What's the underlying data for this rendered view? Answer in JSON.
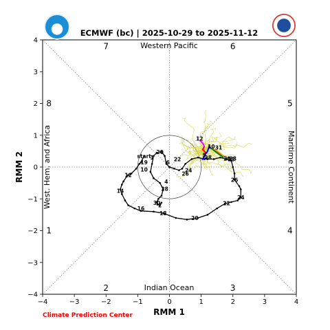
{
  "header": {
    "title": "ECMWF (bc) | 2025-10-29 to 2025-11-12"
  },
  "footer": {
    "credit": "Climate Prediction Center",
    "credit_color": "#ff0000"
  },
  "logos": {
    "left": {
      "icon": "noaa-logo-icon",
      "color": "#1a8fd8"
    },
    "right": {
      "icon": "nws-logo-icon",
      "color": "#1f4e9e"
    }
  },
  "chart_data": {
    "type": "line",
    "title": "ECMWF (bc) | 2025-10-29 to 2025-11-12",
    "xlabel": "RMM 1",
    "ylabel": "RMM 2",
    "xlim": [
      -4,
      4
    ],
    "ylim": [
      -4,
      4
    ],
    "xticks": [
      "−4",
      "−3",
      "−2",
      "−1",
      "0",
      "1",
      "2",
      "3",
      "4"
    ],
    "yticks": [
      "−4",
      "−3",
      "−2",
      "−1",
      "0",
      "1",
      "2",
      "3",
      "4"
    ],
    "phase_numbers": [
      {
        "label": "1",
        "x": -3.8,
        "y": -2.0
      },
      {
        "label": "2",
        "x": -2.0,
        "y": -3.8
      },
      {
        "label": "3",
        "x": 2.0,
        "y": -3.8
      },
      {
        "label": "4",
        "x": 3.8,
        "y": -2.0
      },
      {
        "label": "5",
        "x": 3.8,
        "y": 2.0
      },
      {
        "label": "6",
        "x": 2.0,
        "y": 3.8
      },
      {
        "label": "7",
        "x": -2.0,
        "y": 3.8
      },
      {
        "label": "8",
        "x": -3.8,
        "y": 2.0
      }
    ],
    "region_labels": {
      "top": "Western Pacific",
      "bottom": "Indian Ocean",
      "left": "West. Hem. and Africa",
      "right": "Maritime Continent"
    },
    "unit_circle_radius": 1,
    "observed": {
      "color": "#000000",
      "points": [
        [
          -0.8,
          0.35
        ],
        [
          -0.9,
          0.15
        ],
        [
          -0.95,
          0.1
        ],
        [
          -1.05,
          -0.05
        ],
        [
          -1.2,
          -0.2
        ],
        [
          -1.3,
          -0.25
        ],
        [
          -1.35,
          -0.3
        ],
        [
          -1.45,
          -0.45
        ],
        [
          -1.5,
          -0.55
        ],
        [
          -1.55,
          -0.7
        ],
        [
          -1.5,
          -0.85
        ],
        [
          -1.4,
          -1.05
        ],
        [
          -1.3,
          -1.2
        ],
        [
          -1.1,
          -1.3
        ],
        [
          -0.9,
          -1.38
        ],
        [
          -0.5,
          -1.4
        ],
        [
          -0.2,
          -1.45
        ],
        [
          0.2,
          -1.6
        ],
        [
          0.55,
          -1.65
        ],
        [
          0.9,
          -1.6
        ],
        [
          1.2,
          -1.5
        ],
        [
          1.5,
          -1.3
        ],
        [
          1.75,
          -1.15
        ],
        [
          1.95,
          -1.1
        ],
        [
          2.15,
          -1.05
        ],
        [
          2.25,
          -0.95
        ],
        [
          2.25,
          -0.7
        ],
        [
          2.2,
          -0.6
        ],
        [
          2.05,
          -0.4
        ],
        [
          2.05,
          -0.2
        ],
        [
          2.0,
          0.0
        ],
        [
          1.95,
          0.2
        ],
        [
          1.8,
          0.25
        ],
        [
          1.6,
          0.3
        ],
        [
          1.4,
          0.25
        ],
        [
          1.2,
          0.25
        ],
        [
          1.1,
          0.25
        ],
        [
          0.9,
          0.3
        ],
        [
          0.7,
          0.25
        ],
        [
          0.5,
          0.1
        ],
        [
          0.4,
          -0.05
        ],
        [
          0.3,
          -0.1
        ],
        [
          0.15,
          -0.05
        ],
        [
          0.0,
          0.0
        ],
        [
          -0.1,
          0.1
        ],
        [
          -0.15,
          0.35
        ],
        [
          -0.25,
          0.48
        ],
        [
          -0.4,
          0.45
        ],
        [
          -0.5,
          0.35
        ],
        [
          -0.55,
          0.1
        ],
        [
          -0.6,
          -0.15
        ],
        [
          -0.5,
          -0.35
        ],
        [
          -0.3,
          -0.5
        ],
        [
          -0.2,
          -0.7
        ],
        [
          -0.25,
          -0.9
        ],
        [
          -0.35,
          -1.0
        ],
        [
          -0.4,
          -1.1
        ],
        [
          -0.38,
          -1.18
        ],
        [
          -0.3,
          -1.2
        ],
        [
          -0.25,
          -1.12
        ]
      ],
      "labels": [
        {
          "text": "start",
          "x": -0.8,
          "y": 0.35
        },
        {
          "text": "1",
          "x": -0.55,
          "y": 0.3
        },
        {
          "text": "10",
          "x": -0.8,
          "y": -0.08
        },
        {
          "text": "19",
          "x": -0.8,
          "y": 0.15
        },
        {
          "text": "12",
          "x": -1.3,
          "y": -0.25
        },
        {
          "text": "14",
          "x": -1.55,
          "y": -0.75
        },
        {
          "text": "16",
          "x": -0.9,
          "y": -1.3
        },
        {
          "text": "18",
          "x": -0.2,
          "y": -1.45
        },
        {
          "text": "20",
          "x": 0.8,
          "y": -1.6
        },
        {
          "text": "22",
          "x": 1.8,
          "y": -1.13
        },
        {
          "text": "24",
          "x": 2.25,
          "y": -0.95
        },
        {
          "text": "26",
          "x": 2.05,
          "y": -0.4
        },
        {
          "text": "28",
          "x": 1.95,
          "y": 0.25
        },
        {
          "text": "20",
          "x": -0.3,
          "y": 0.48
        },
        {
          "text": "22",
          "x": 0.25,
          "y": 0.25
        },
        {
          "text": "24",
          "x": 0.6,
          "y": -0.1
        },
        {
          "text": "26",
          "x": 0.5,
          "y": -0.2
        },
        {
          "text": "6",
          "x": -0.05,
          "y": 0.15
        },
        {
          "text": "4",
          "x": -0.1,
          "y": -0.45
        },
        {
          "text": "28",
          "x": -0.15,
          "y": -0.68
        },
        {
          "text": "30",
          "x": -0.4,
          "y": -1.12
        },
        {
          "text": "2",
          "x": -0.3,
          "y": -1.2
        }
      ]
    },
    "forecast_mean": {
      "segments": [
        {
          "color": "#ff00ff",
          "points": [
            [
              0.95,
              0.85
            ],
            [
              1.05,
              0.75
            ],
            [
              1.1,
              0.65
            ]
          ]
        },
        {
          "color": "#ff0000",
          "points": [
            [
              1.1,
              0.65
            ],
            [
              1.05,
              0.55
            ],
            [
              1.15,
              0.45
            ],
            [
              1.1,
              0.35
            ]
          ]
        },
        {
          "color": "#0000ff",
          "points": [
            [
              1.1,
              0.35
            ],
            [
              1.2,
              0.5
            ],
            [
              1.25,
              0.65
            ],
            [
              1.3,
              0.6
            ]
          ]
        },
        {
          "color": "#ff8c00",
          "points": [
            [
              1.3,
              0.6
            ],
            [
              1.5,
              0.5
            ],
            [
              1.7,
              0.35
            ],
            [
              1.8,
              0.3
            ]
          ]
        },
        {
          "color": "#008000",
          "points": [
            [
              1.3,
              0.6
            ],
            [
              1.5,
              0.45
            ],
            [
              1.7,
              0.3
            ]
          ]
        },
        {
          "color": "#0000ff",
          "points": [
            [
              1.1,
              0.35
            ],
            [
              1.05,
              0.25
            ],
            [
              1.2,
              0.3
            ]
          ]
        }
      ],
      "labels": [
        {
          "text": "12",
          "x": 0.95,
          "y": 0.9
        },
        {
          "text": "10",
          "x": 1.32,
          "y": 0.65
        },
        {
          "text": "31",
          "x": 1.55,
          "y": 0.62
        },
        {
          "text": "5",
          "x": 1.1,
          "y": 0.38
        },
        {
          "text": "28",
          "x": 1.22,
          "y": 0.3
        },
        {
          "text": "29",
          "x": 1.82,
          "y": 0.27
        },
        {
          "text": "28",
          "x": 2.0,
          "y": 0.27
        }
      ]
    },
    "ensemble": {
      "color": "#d6d64a",
      "members": 40,
      "center": [
        1.4,
        0.55
      ],
      "spread": [
        1.0,
        0.8
      ]
    }
  }
}
